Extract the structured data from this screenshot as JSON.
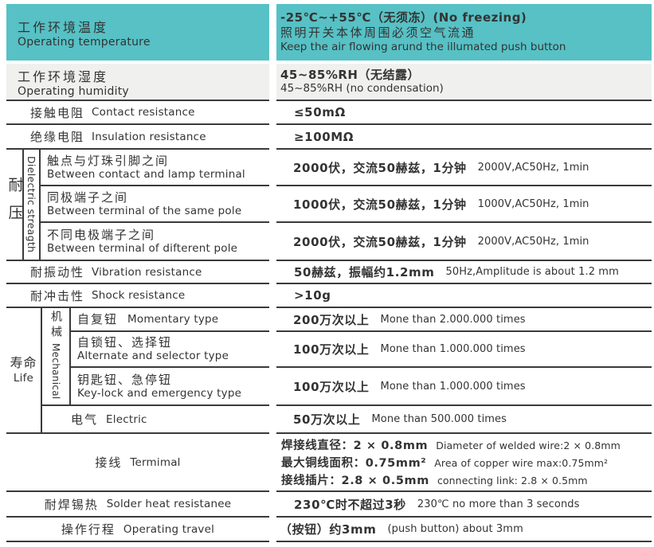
{
  "colors": {
    "header_teal": "#57c1c5",
    "alt_row_gray": "#f0f0ee",
    "rule_line": "#3a3a3a",
    "text": "#333333"
  },
  "table": {
    "temperature": {
      "label_zh": "工作环境温度",
      "label_en": "Operating temperature",
      "value_line1": "-25℃~+55℃（无须冻）(No freezing)",
      "value_line2": "照明开关本体周围必须空气流通",
      "value_line3": "Keep the air flowing arund the illumated push button"
    },
    "humidity": {
      "label_zh": "工作环境湿度",
      "label_en": "Operating humidity",
      "value_line1": "45~85%RH（无结露）",
      "value_line2": "45~85%RH (no condensation)"
    },
    "contact_resistance": {
      "label_zh": "接触电阻",
      "label_en": "Contact resistance",
      "value": "≤50mΩ"
    },
    "insulation_resistance": {
      "label_zh": "绝缘电阻",
      "label_en": "Insulation resistance",
      "value": "≥100MΩ"
    },
    "dielectric": {
      "group_zh": "耐压",
      "group_en": "Dielectric streagth",
      "rows": [
        {
          "zh": "触点与灯珠引脚之间",
          "en": "Between contact and lamp terminal",
          "value_zh": "2000伏，交流50赫兹，1分钟",
          "value_en": "2000V,AC50Hz, 1min"
        },
        {
          "zh": "同极端子之间",
          "en": "Between terminal of the same pole",
          "value_zh": "1000伏，交流50赫兹，1分钟",
          "value_en": "1000V,AC50Hz, 1min"
        },
        {
          "zh": "不同电极端子之间",
          "en": "Between terminal of difterent pole",
          "value_zh": "2000伏，交流50赫兹，1分钟",
          "value_en": "2000V,AC50Hz, 1min"
        }
      ]
    },
    "vibration": {
      "label_zh": "耐振动性",
      "label_en": "Vibration resistance",
      "value_zh": "50赫兹，振幅约1.2mm",
      "value_en": "50Hz,Amplitude is about 1.2 mm"
    },
    "shock": {
      "label_zh": "耐冲击性",
      "label_en": "Shock resistance",
      "value": ">10g"
    },
    "life": {
      "group_zh": "寿命",
      "group_en": "Life",
      "mechanical_zh": "机械",
      "mechanical_en": "Mechanical",
      "rows": [
        {
          "zh": "自复钮",
          "en": "Momentary type",
          "value_zh": "200万次以上",
          "value_en": "Mone than 2.000.000 times"
        },
        {
          "zh": "自锁钮、选择钮",
          "en": "Alternate and selector type",
          "value_zh": "100万次以上",
          "value_en": "Mone than 1.000.000 times"
        },
        {
          "zh": "钥匙钮、急停钮",
          "en": "Key-lock and emergency type",
          "value_zh": "100万次以上",
          "value_en": "Mone than 1.000.000 times"
        }
      ],
      "electric": {
        "zh": "电气",
        "en": "Electric",
        "value_zh": "50万次以上",
        "value_en": "Mone than 500.000 times"
      }
    },
    "terminal": {
      "label_zh": "接线",
      "label_en": "Termimal",
      "lines": [
        {
          "zh": "焊接线直径：2 × 0.8mm",
          "en": "Diameter of welded wire:2 × 0.8mm"
        },
        {
          "zh": "最大铜线面积：0.75mm²",
          "en": "Area of copper wire max:0.75mm²"
        },
        {
          "zh": "接线插片：2.8 × 0.5mm",
          "en": "connecting link: 2.8 × 0.5mm"
        }
      ]
    },
    "solder": {
      "label_zh": "耐焊锡热",
      "label_en": "Solder heat resistanee",
      "value_zh": "230℃时不超过3秒",
      "value_en": "230℃ no more than 3 seconds"
    },
    "travel": {
      "label_zh": "操作行程",
      "label_en": "Operating travel",
      "value_zh": "（按钮）约3mm",
      "value_en": "(push button) about 3mm"
    }
  }
}
